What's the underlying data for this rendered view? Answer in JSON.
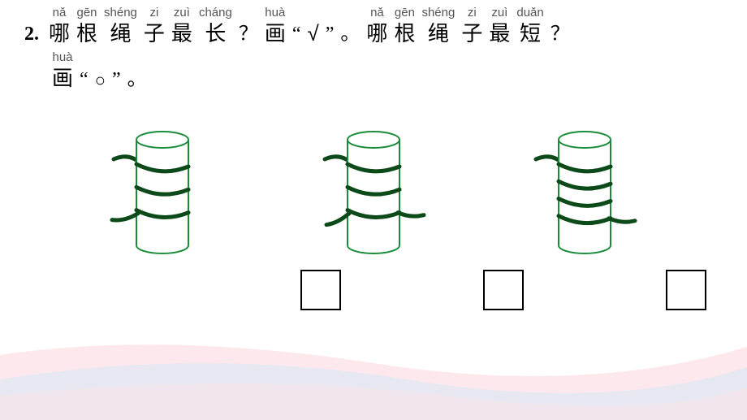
{
  "question_number": "2.",
  "line1_chars": [
    {
      "py": "nǎ",
      "hz": "哪"
    },
    {
      "py": "gēn",
      "hz": "根"
    },
    {
      "py": "shéng",
      "hz": "绳"
    },
    {
      "py": "zi",
      "hz": "子"
    },
    {
      "py": "zuì",
      "hz": "最"
    },
    {
      "py": "cháng",
      "hz": "长"
    }
  ],
  "punct_q1": "？",
  "hua1": {
    "py": "huà",
    "hz": "画"
  },
  "quote_open": "“",
  "checkmark": "√",
  "quote_close": "”",
  "punct_period1": "。",
  "line1b_chars": [
    {
      "py": "nǎ",
      "hz": "哪"
    },
    {
      "py": "gēn",
      "hz": "根"
    },
    {
      "py": "shéng",
      "hz": "绳"
    },
    {
      "py": "zi",
      "hz": "子"
    },
    {
      "py": "zuì",
      "hz": "最"
    },
    {
      "py": "duǎn",
      "hz": "短"
    }
  ],
  "punct_q2": "？",
  "hua2": {
    "py": "huà",
    "hz": "画"
  },
  "circle": "○",
  "punct_period2": "。",
  "cylinders": [
    {
      "rope_loops": 3,
      "rope_color": "#0d4a1a",
      "cyl_stroke": "#1a8c3a"
    },
    {
      "rope_loops": 3,
      "rope_color": "#0d4a1a",
      "cyl_stroke": "#1a8c3a"
    },
    {
      "rope_loops": 4,
      "rope_color": "#0d4a1a",
      "cyl_stroke": "#1a8c3a"
    }
  ],
  "wave_colors": {
    "pink": "#fce4e8",
    "blue": "#d9e8f5"
  }
}
